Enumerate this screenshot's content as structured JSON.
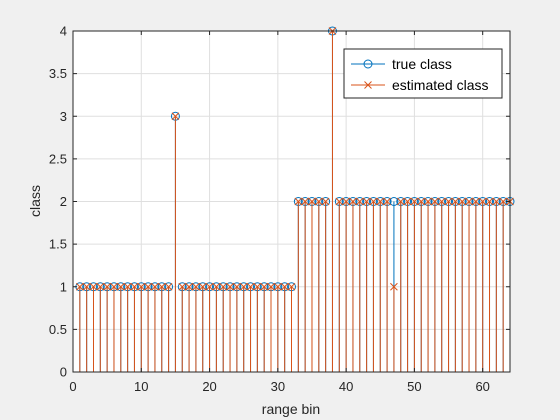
{
  "chart_data": {
    "type": "stem",
    "xlabel": "range bin",
    "ylabel": "class",
    "xlim": [
      0,
      64
    ],
    "ylim": [
      0,
      4
    ],
    "xticks": [
      0,
      10,
      20,
      30,
      40,
      50,
      60
    ],
    "yticks": [
      0,
      0.5,
      1,
      1.5,
      2,
      2.5,
      3,
      3.5,
      4
    ],
    "xtick_labels": [
      "0",
      "10",
      "20",
      "30",
      "40",
      "50",
      "60"
    ],
    "ytick_labels": [
      "0",
      "0.5",
      "1",
      "1.5",
      "2",
      "2.5",
      "3",
      "3.5",
      "4"
    ],
    "grid": true,
    "legend_position": "top-right",
    "x": [
      1,
      2,
      3,
      4,
      5,
      6,
      7,
      8,
      9,
      10,
      11,
      12,
      13,
      14,
      15,
      16,
      17,
      18,
      19,
      20,
      21,
      22,
      23,
      24,
      25,
      26,
      27,
      28,
      29,
      30,
      31,
      32,
      33,
      34,
      35,
      36,
      37,
      38,
      39,
      40,
      41,
      42,
      43,
      44,
      45,
      46,
      47,
      48,
      49,
      50,
      51,
      52,
      53,
      54,
      55,
      56,
      57,
      58,
      59,
      60,
      61,
      62,
      63,
      64
    ],
    "series": [
      {
        "name": "true class",
        "marker": "circle",
        "color": "#0072bd",
        "values": [
          1,
          1,
          1,
          1,
          1,
          1,
          1,
          1,
          1,
          1,
          1,
          1,
          1,
          1,
          3,
          1,
          1,
          1,
          1,
          1,
          1,
          1,
          1,
          1,
          1,
          1,
          1,
          1,
          1,
          1,
          1,
          1,
          2,
          2,
          2,
          2,
          2,
          4,
          2,
          2,
          2,
          2,
          2,
          2,
          2,
          2,
          2,
          2,
          2,
          2,
          2,
          2,
          2,
          2,
          2,
          2,
          2,
          2,
          2,
          2,
          2,
          2,
          2,
          2
        ]
      },
      {
        "name": "estimated class",
        "marker": "x",
        "color": "#d95319",
        "values": [
          1,
          1,
          1,
          1,
          1,
          1,
          1,
          1,
          1,
          1,
          1,
          1,
          1,
          1,
          3,
          1,
          1,
          1,
          1,
          1,
          1,
          1,
          1,
          1,
          1,
          1,
          1,
          1,
          1,
          1,
          1,
          1,
          2,
          2,
          2,
          2,
          2,
          4,
          2,
          2,
          2,
          2,
          2,
          2,
          2,
          2,
          1,
          2,
          2,
          2,
          2,
          2,
          2,
          2,
          2,
          2,
          2,
          2,
          2,
          2,
          2,
          2,
          2,
          2
        ]
      }
    ]
  }
}
